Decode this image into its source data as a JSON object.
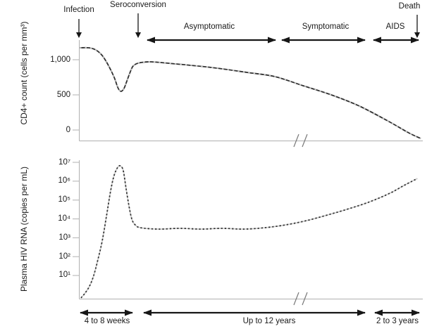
{
  "annotations": {
    "events": [
      {
        "id": "infection",
        "label": "Infection"
      },
      {
        "id": "seroconversion",
        "label": "Seroconversion"
      },
      {
        "id": "death",
        "label": "Death"
      }
    ],
    "phases": [
      {
        "id": "asymptomatic",
        "label": "Asymptomatic"
      },
      {
        "id": "symptomatic",
        "label": "Symptomatic"
      },
      {
        "id": "aids",
        "label": "AIDS"
      }
    ],
    "durations": [
      {
        "id": "acute",
        "label": "4 to 8 weeks"
      },
      {
        "id": "chronic",
        "label": "Up to 12 years"
      },
      {
        "id": "late",
        "label": "2 to 3 years"
      }
    ]
  },
  "chart_data": [
    {
      "type": "line",
      "panel": "top",
      "ylabel": "CD4+ count (cells per mm³)",
      "yticks": [
        {
          "label": "1,000",
          "value": 1000
        },
        {
          "label": "500",
          "value": 500
        },
        {
          "label": "0",
          "value": 0
        }
      ],
      "ylim": [
        -150,
        1280
      ],
      "x_axis": {
        "break": true,
        "x_encoding": "normalized 0-1 across broken timeline"
      },
      "grid": false,
      "legend": "none",
      "axis_color": "#b0b0b0",
      "line_color": "#2f2f2f",
      "series": [
        {
          "name": "CD4+ count",
          "style": "solid-with-light-dashes",
          "color": "#2f2f2f",
          "points": [
            [
              0.002,
              1170
            ],
            [
              0.029,
              1170
            ],
            [
              0.049,
              1140
            ],
            [
              0.066,
              1070
            ],
            [
              0.08,
              970
            ],
            [
              0.094,
              840
            ],
            [
              0.105,
              720
            ],
            [
              0.111,
              630
            ],
            [
              0.117,
              570
            ],
            [
              0.123,
              550
            ],
            [
              0.131,
              590
            ],
            [
              0.139,
              690
            ],
            [
              0.148,
              810
            ],
            [
              0.156,
              900
            ],
            [
              0.166,
              940
            ],
            [
              0.18,
              960
            ],
            [
              0.211,
              970
            ],
            [
              0.283,
              940
            ],
            [
              0.385,
              890
            ],
            [
              0.488,
              820
            ],
            [
              0.57,
              760
            ],
            [
              0.652,
              630
            ],
            [
              0.734,
              500
            ],
            [
              0.816,
              340
            ],
            [
              0.898,
              130
            ],
            [
              0.959,
              -40
            ],
            [
              0.994,
              -120
            ]
          ]
        }
      ]
    },
    {
      "type": "line",
      "panel": "bottom",
      "ylabel": "Plasma HIV RNA (copies per mL)",
      "yscale": "log10",
      "yticks": [
        {
          "label": "10⁷",
          "log": 7
        },
        {
          "label": "10⁶",
          "log": 6
        },
        {
          "label": "10⁵",
          "log": 5
        },
        {
          "label": "10⁴",
          "log": 4
        },
        {
          "label": "10³",
          "log": 3
        },
        {
          "label": "10²",
          "log": 2
        },
        {
          "label": "10¹",
          "log": 1
        }
      ],
      "ylim_log": [
        -0.23,
        7.23
      ],
      "x_axis": {
        "break": true,
        "x_encoding": "normalized 0-1 across broken timeline"
      },
      "grid": false,
      "legend": "none",
      "axis_color": "#b0b0b0",
      "line_color": "#2f2f2f",
      "series": [
        {
          "name": "Plasma HIV RNA",
          "style": "dashed",
          "color": "#2f2f2f",
          "points": [
            [
              0.006,
              -0.19
            ],
            [
              0.018,
              0.07
            ],
            [
              0.031,
              0.44
            ],
            [
              0.043,
              1.0
            ],
            [
              0.055,
              1.82
            ],
            [
              0.068,
              2.86
            ],
            [
              0.08,
              4.13
            ],
            [
              0.092,
              5.47
            ],
            [
              0.102,
              6.29
            ],
            [
              0.113,
              6.74
            ],
            [
              0.121,
              6.81
            ],
            [
              0.129,
              6.55
            ],
            [
              0.137,
              5.62
            ],
            [
              0.146,
              4.65
            ],
            [
              0.154,
              3.98
            ],
            [
              0.164,
              3.68
            ],
            [
              0.18,
              3.53
            ],
            [
              0.232,
              3.46
            ],
            [
              0.293,
              3.5
            ],
            [
              0.355,
              3.46
            ],
            [
              0.416,
              3.5
            ],
            [
              0.477,
              3.46
            ],
            [
              0.539,
              3.53
            ],
            [
              0.6,
              3.68
            ],
            [
              0.662,
              3.91
            ],
            [
              0.723,
              4.21
            ],
            [
              0.785,
              4.54
            ],
            [
              0.846,
              4.91
            ],
            [
              0.904,
              5.36
            ],
            [
              0.949,
              5.81
            ],
            [
              0.984,
              6.14
            ]
          ]
        }
      ]
    }
  ]
}
